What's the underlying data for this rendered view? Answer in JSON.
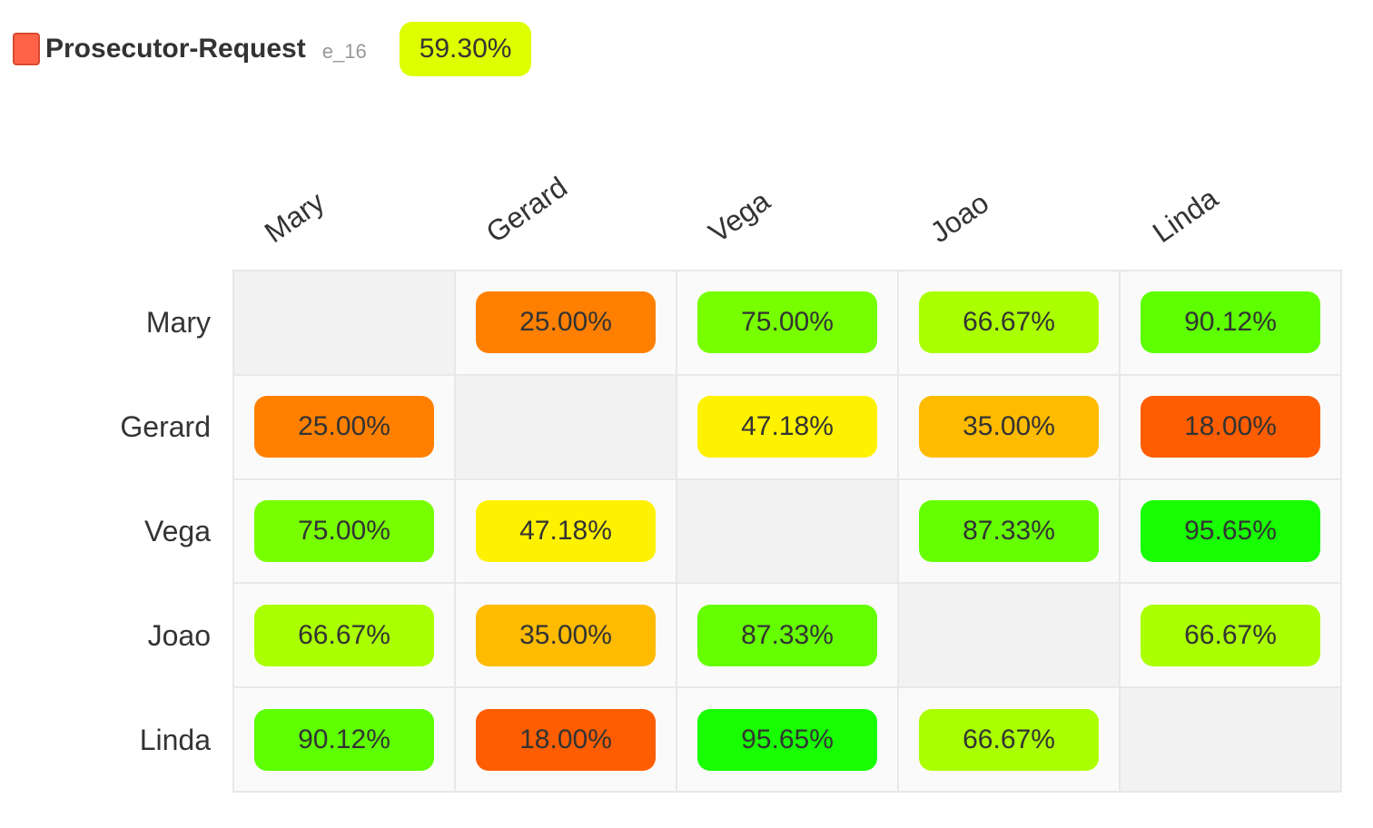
{
  "header": {
    "title": "Prosecutor-Request",
    "subtitle": "e_16",
    "overall": "59.30%",
    "swatch_color": "#ff6347",
    "overall_color": "#ddff00"
  },
  "chart_data": {
    "type": "heatmap",
    "rows": [
      "Mary",
      "Gerard",
      "Vega",
      "Joao",
      "Linda"
    ],
    "columns": [
      "Mary",
      "Gerard",
      "Vega",
      "Joao",
      "Linda"
    ],
    "cells": [
      [
        null,
        "25.00%",
        "75.00%",
        "66.67%",
        "90.12%"
      ],
      [
        "25.00%",
        null,
        "47.18%",
        "35.00%",
        "18.00%"
      ],
      [
        "75.00%",
        "47.18%",
        null,
        "87.33%",
        "95.65%"
      ],
      [
        "66.67%",
        "35.00%",
        "87.33%",
        null,
        "66.67%"
      ],
      [
        "90.12%",
        "18.00%",
        "95.65%",
        "66.67%",
        null
      ]
    ],
    "colors": [
      [
        null,
        "#ff8000",
        "#77ff00",
        "#aaff00",
        "#5eff00"
      ],
      [
        "#ff8000",
        null,
        "#fff200",
        "#ffbb00",
        "#ff5e00"
      ],
      [
        "#77ff00",
        "#fff200",
        null,
        "#66ff00",
        "#17ff00"
      ],
      [
        "#aaff00",
        "#ffbb00",
        "#66ff00",
        null,
        "#aaff00"
      ],
      [
        "#5eff00",
        "#ff5e00",
        "#17ff00",
        "#aaff00",
        null
      ]
    ]
  }
}
